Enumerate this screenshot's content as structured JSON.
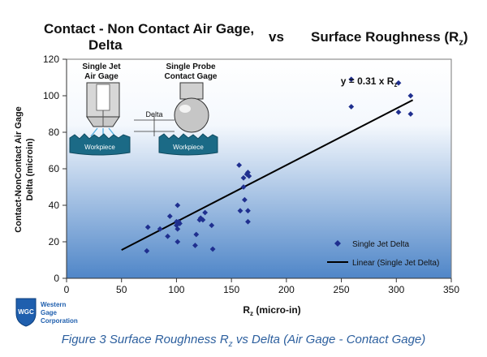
{
  "title": {
    "line1": "Contact - Non Contact Air Gage,",
    "line2": "Delta",
    "vs": "vs",
    "right": "Surface Roughness (R",
    "right_sub": "z",
    "right_end": ")"
  },
  "caption": {
    "pre": "Figure 3 Surface Roughness R",
    "sub": "z",
    "post": " vs Delta (Air Gage - Contact Gage)"
  },
  "logo": {
    "initials": "WGC",
    "line1": "Western",
    "line2": "Gage",
    "line3": "Corporation"
  },
  "inset": {
    "left_label_1": "Single Jet",
    "left_label_2": "Air Gage",
    "right_label_1": "Single Probe",
    "right_label_2": "Contact Gage",
    "delta_label": "Delta",
    "workpiece_left": "Workpiece",
    "workpiece_right": "Workpiece"
  },
  "chart_data": {
    "type": "scatter",
    "xlabel": "R",
    "xlabel_sub": "z",
    "xlabel_end": " (micro-in)",
    "ylabel_1": "Contact-NonContact Air Gage",
    "ylabel_2": "Delta (microin)",
    "xlim": [
      0,
      350
    ],
    "ylim": [
      0,
      120
    ],
    "x_ticks": [
      0,
      50,
      100,
      150,
      200,
      250,
      300,
      350
    ],
    "y_ticks": [
      0,
      20,
      40,
      60,
      80,
      100,
      120
    ],
    "grid": false,
    "legend_position": "bottom-right",
    "series": [
      {
        "name": "Single Jet Delta",
        "color": "#1f2f8f",
        "marker": "diamond",
        "points": [
          [
            73,
            15
          ],
          [
            74,
            28
          ],
          [
            85,
            27
          ],
          [
            92,
            23
          ],
          [
            94,
            34
          ],
          [
            100,
            31
          ],
          [
            100,
            29
          ],
          [
            101,
            27
          ],
          [
            101,
            20
          ],
          [
            101,
            40
          ],
          [
            102,
            31
          ],
          [
            103,
            30
          ],
          [
            117,
            18
          ],
          [
            118,
            24
          ],
          [
            121,
            32
          ],
          [
            122,
            33
          ],
          [
            124,
            32
          ],
          [
            126,
            36
          ],
          [
            132,
            29
          ],
          [
            133,
            16
          ],
          [
            157,
            62
          ],
          [
            158,
            37
          ],
          [
            161,
            50
          ],
          [
            161,
            55
          ],
          [
            162,
            43
          ],
          [
            164,
            57
          ],
          [
            165,
            58
          ],
          [
            165,
            37
          ],
          [
            165,
            31
          ],
          [
            166,
            56
          ],
          [
            259,
            109
          ],
          [
            259,
            94
          ],
          [
            302,
            107
          ],
          [
            302,
            91
          ],
          [
            313,
            100
          ],
          [
            313,
            90
          ]
        ]
      },
      {
        "name": "Linear (Single Jet Delta)",
        "color": "#000000",
        "type": "line",
        "slope": 0.31,
        "x_range": [
          50,
          315
        ]
      }
    ],
    "annotation": {
      "text": "y = 0.31 x R",
      "sub": "z",
      "x": 290,
      "y": 108
    }
  },
  "colors": {
    "plot_top": "#ffffff",
    "plot_bottom": "#4f86c8",
    "marker": "#1f2f8f",
    "caption": "#2c5f9e",
    "logo_blue": "#1f5fae",
    "inset_teal": "#1b6a86"
  }
}
